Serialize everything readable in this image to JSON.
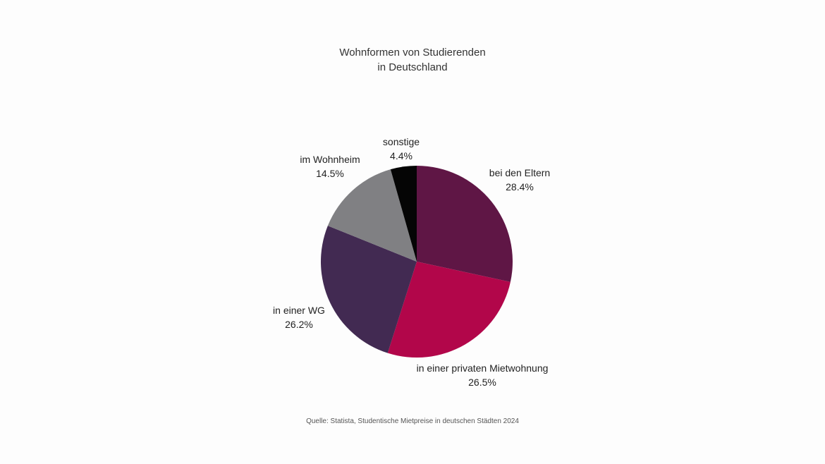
{
  "chart_data": {
    "type": "pie",
    "title_lines": [
      "Wohnformen von Studierenden",
      "in Deutschland"
    ],
    "slices": [
      {
        "label": "bei den Eltern",
        "value": 28.4,
        "value_label": "28.4%",
        "color": "#5f1645"
      },
      {
        "label": "in einer privaten Mietwohnung",
        "value": 26.5,
        "value_label": "26.5%",
        "color": "#b2064a"
      },
      {
        "label": "in einer WG",
        "value": 26.2,
        "value_label": "26.2%",
        "color": "#422a52"
      },
      {
        "label": "im Wohnheim",
        "value": 14.5,
        "value_label": "14.5%",
        "color": "#808083"
      },
      {
        "label": "sonstige",
        "value": 4.4,
        "value_label": "4.4%",
        "color": "#050505"
      }
    ],
    "source": "Quelle: Statista, Studentische Mietpreise in deutschen Städten 2024"
  }
}
